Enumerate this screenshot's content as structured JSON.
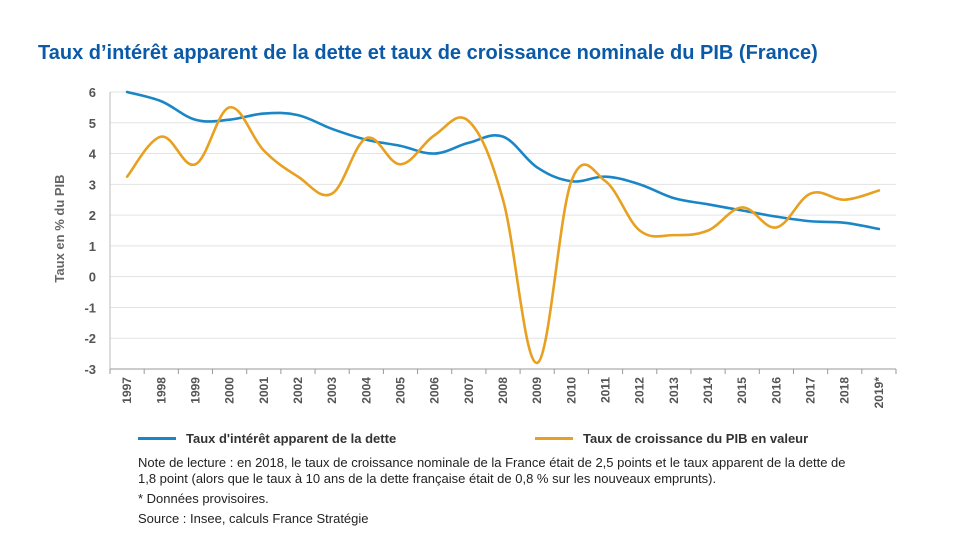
{
  "title": "Taux d’intérêt apparent de la dette et taux de croissance nominale du PIB (France)",
  "chart_data": {
    "type": "line",
    "title": "Taux d’intérêt apparent de la dette et taux de croissance nominale du PIB (France)",
    "xlabel": "",
    "ylabel": "Taux en % du PIB",
    "ylim": [
      -3,
      6
    ],
    "yticks": [
      "6",
      "5",
      "4",
      "3",
      "2",
      "1",
      "0",
      "-1",
      "-2",
      "-3"
    ],
    "categories": [
      "1997",
      "1998",
      "1999",
      "2000",
      "2001",
      "2002",
      "2003",
      "2004",
      "2005",
      "2006",
      "2007",
      "2008",
      "2009",
      "2010",
      "2011",
      "2012",
      "2013",
      "2014",
      "2015",
      "2016",
      "2017",
      "2018",
      "2019*"
    ],
    "grid": true,
    "series": [
      {
        "name": "Taux d'intérêt apparent de la dette",
        "color": "#1a86c6",
        "values": [
          6.0,
          5.7,
          5.1,
          5.1,
          5.3,
          5.25,
          4.8,
          4.45,
          4.25,
          4.0,
          4.35,
          4.55,
          3.55,
          3.1,
          3.25,
          3.0,
          2.55,
          2.35,
          2.15,
          1.95,
          1.8,
          1.75,
          1.55
        ]
      },
      {
        "name": "Taux de croissance du PIB en valeur",
        "color": "#e8a020",
        "values": [
          3.25,
          4.55,
          3.65,
          5.5,
          4.1,
          3.25,
          2.7,
          4.5,
          3.65,
          4.6,
          5.05,
          2.5,
          -2.8,
          3.1,
          3.1,
          1.5,
          1.35,
          1.5,
          2.25,
          1.6,
          2.7,
          2.5,
          2.8
        ]
      }
    ],
    "legend": "bottom"
  },
  "notes": {
    "reading": "Note de lecture : en 2018, le taux de croissance nominale de la France était de 2,5 points et le taux apparent de la dette de 1,8 point (alors que le taux à 10 ans de la dette française était de 0,8 % sur les nouveaux emprunts).",
    "provisional": "* Données provisoires.",
    "source": "Source : Insee, calculs France Stratégie"
  }
}
